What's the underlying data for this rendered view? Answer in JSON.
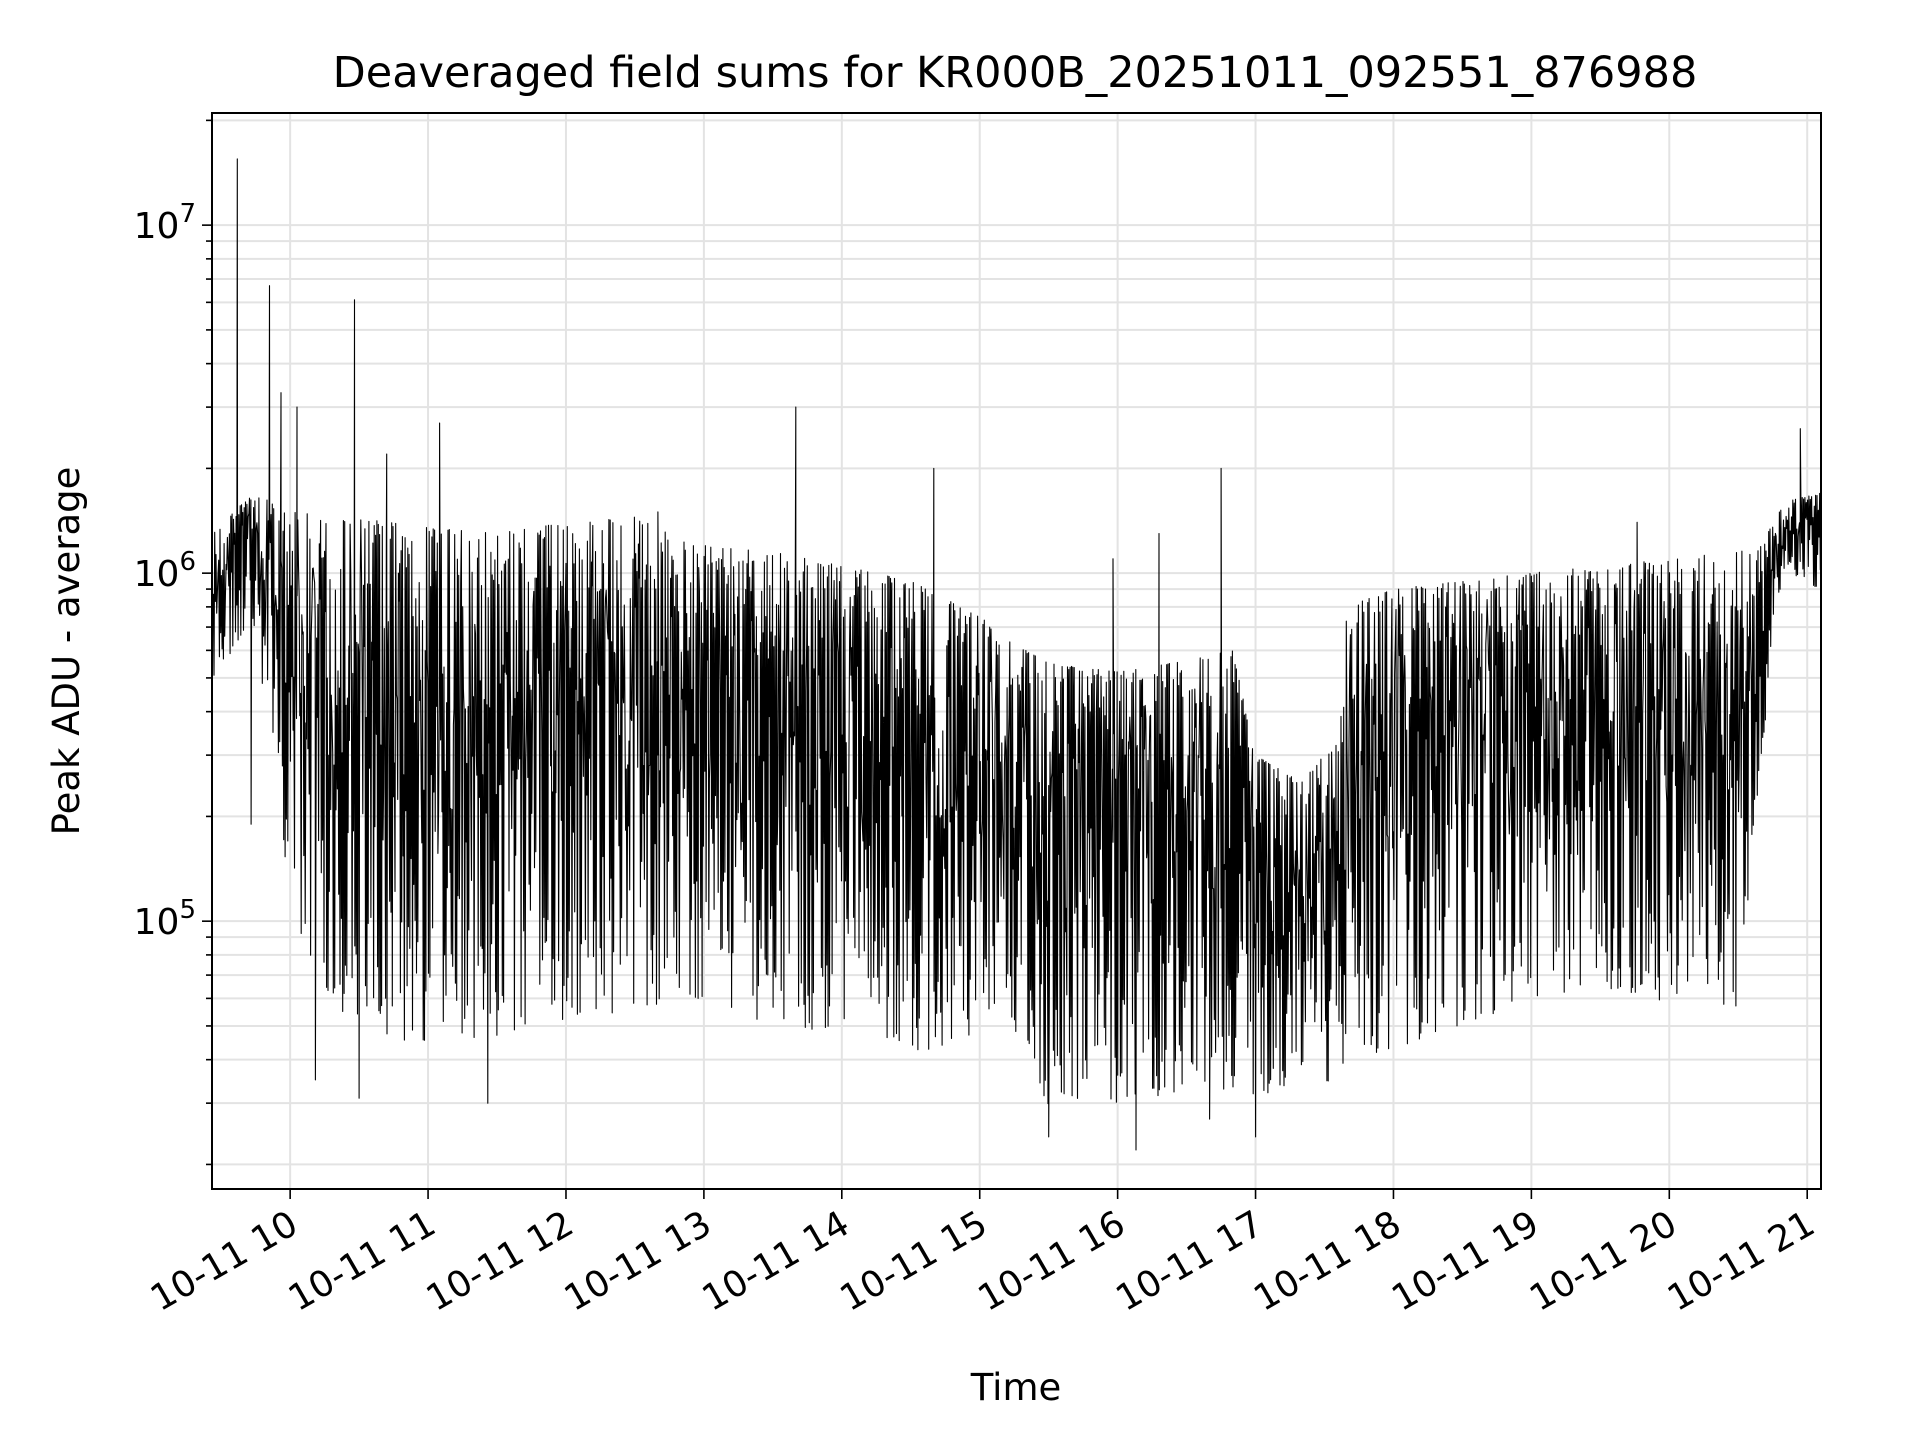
{
  "chart_data": {
    "type": "line",
    "title": "Deaveraged field sums for KR000B_20251011_092551_876988",
    "xlabel": "Time",
    "ylabel": "Peak ADU - average",
    "yscale": "log",
    "grid": true,
    "xlim": [
      "2025-10-11 09:26",
      "2025-10-11 21:06"
    ],
    "ylim": [
      17000,
      21000000
    ],
    "x_ticks": [
      "10-11 10",
      "10-11 11",
      "10-11 12",
      "10-11 13",
      "10-11 14",
      "10-11 15",
      "10-11 16",
      "10-11 17",
      "10-11 18",
      "10-11 19",
      "10-11 20",
      "10-11 21"
    ],
    "y_ticks": [
      {
        "base": "10",
        "exp": "5",
        "value": 100000
      },
      {
        "base": "10",
        "exp": "6",
        "value": 1000000
      },
      {
        "base": "10",
        "exp": "7",
        "value": 10000000
      }
    ],
    "series": [
      {
        "color": "#000000",
        "envelope": {
          "time": [
            "09:26",
            "09:35",
            "09:45",
            "10:00",
            "10:20",
            "10:45",
            "11:00",
            "11:30",
            "12:00",
            "12:30",
            "12:50",
            "13:00",
            "13:30",
            "14:00",
            "14:30",
            "15:00",
            "15:20",
            "15:30",
            "16:00",
            "16:30",
            "16:50",
            "17:00",
            "17:20",
            "17:35",
            "17:40",
            "18:00",
            "18:30",
            "19:00",
            "19:30",
            "20:00",
            "20:30",
            "20:40",
            "20:50",
            "21:06"
          ],
          "high": [
            1300000,
            1500000,
            1700000,
            1500000,
            1450000,
            1400000,
            1350000,
            1300000,
            1400000,
            1450000,
            1250000,
            1200000,
            1150000,
            1050000,
            950000,
            750000,
            600000,
            550000,
            520000,
            560000,
            600000,
            300000,
            250000,
            330000,
            800000,
            900000,
            950000,
            1000000,
            1050000,
            1100000,
            1150000,
            1200000,
            1600000,
            1700000
          ],
          "low": [
            500000,
            600000,
            700000,
            100000,
            55000,
            45000,
            45000,
            47000,
            52000,
            55000,
            60000,
            60000,
            50000,
            48000,
            42000,
            45000,
            45000,
            28000,
            30000,
            32000,
            33000,
            30000,
            32000,
            35000,
            40000,
            43000,
            50000,
            60000,
            65000,
            58000,
            55000,
            300000,
            1000000,
            900000
          ]
        },
        "spikes": [
          {
            "time": "09:37",
            "value": 15500000
          },
          {
            "time": "09:51",
            "value": 6700000
          },
          {
            "time": "09:56",
            "value": 3300000
          },
          {
            "time": "10:03",
            "value": 3000000
          },
          {
            "time": "10:28",
            "value": 6100000
          },
          {
            "time": "10:42",
            "value": 2200000
          },
          {
            "time": "11:05",
            "value": 2700000
          },
          {
            "time": "12:40",
            "value": 1500000
          },
          {
            "time": "13:40",
            "value": 3000000
          },
          {
            "time": "14:40",
            "value": 2000000
          },
          {
            "time": "15:58",
            "value": 1100000
          },
          {
            "time": "16:18",
            "value": 1300000
          },
          {
            "time": "16:45",
            "value": 2000000
          },
          {
            "time": "17:35",
            "value": 320000
          },
          {
            "time": "19:46",
            "value": 1400000
          },
          {
            "time": "20:57",
            "value": 2600000
          }
        ],
        "dips": [
          {
            "time": "09:43",
            "value": 190000
          },
          {
            "time": "10:11",
            "value": 35000
          },
          {
            "time": "10:30",
            "value": 31000
          },
          {
            "time": "11:26",
            "value": 30000
          },
          {
            "time": "15:30",
            "value": 24000
          },
          {
            "time": "16:08",
            "value": 22000
          },
          {
            "time": "16:40",
            "value": 27000
          },
          {
            "time": "17:00",
            "value": 24000
          }
        ]
      }
    ]
  }
}
